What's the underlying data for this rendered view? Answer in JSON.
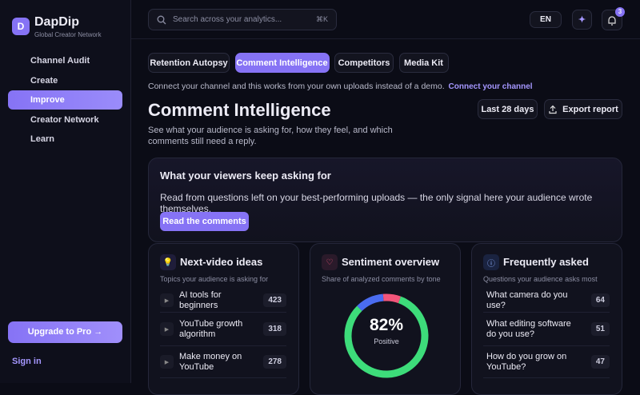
{
  "sidebar": {
    "brand": "DapDip",
    "tagline": "Global Creator Network",
    "nav": [
      "Channel Audit",
      "Create",
      "Improve",
      "Creator Network",
      "Learn"
    ],
    "active_nav": 2,
    "upgrade": "Upgrade to Pro →",
    "sign_in": "Sign in"
  },
  "topbar": {
    "search_placeholder": "Search across your analytics...",
    "shortcut": "⌘K",
    "language": "EN",
    "notifications": "3"
  },
  "tabs": {
    "items": [
      "Retention Autopsy",
      "Comment Intelligence",
      "Competitors",
      "Media Kit"
    ],
    "active": 1
  },
  "notice": {
    "text": "Connect your channel and this works from your own uploads instead of a demo.",
    "link": "Connect your channel"
  },
  "header": {
    "title": "Comment Intelligence",
    "subtitle": "See what your audience is asking for, how they feel, and which comments still need a reply.",
    "range": "Last 28 days",
    "export": "Export report"
  },
  "hero": {
    "title": "What your viewers keep asking for",
    "text": "Read from questions left on your best-performing uploads — the only signal here your audience wrote themselves.",
    "button": "Read the comments"
  },
  "ideas": {
    "title": "Next-video ideas",
    "subtitle": "Topics your audience is asking for",
    "rows": [
      {
        "label": "AI tools for beginners",
        "value": 423
      },
      {
        "label": "YouTube growth algorithm",
        "value": 318
      },
      {
        "label": "Make money on YouTube",
        "value": 278
      }
    ]
  },
  "sentiment": {
    "title": "Sentiment overview",
    "subtitle": "Share of analyzed comments by tone",
    "values": [
      82,
      11,
      7
    ],
    "colors": [
      "#3ddc7a",
      "#4a6cf0",
      "#f2557a"
    ],
    "center_label": "82%",
    "center_caption": "Positive"
  },
  "faq": {
    "title": "Frequently asked",
    "subtitle": "Questions your audience asks most",
    "rows": [
      {
        "label": "What camera do you use?",
        "value": 64
      },
      {
        "label": "What editing software do you use?",
        "value": 51
      },
      {
        "label": "How do you grow on YouTube?",
        "value": 47
      }
    ]
  }
}
